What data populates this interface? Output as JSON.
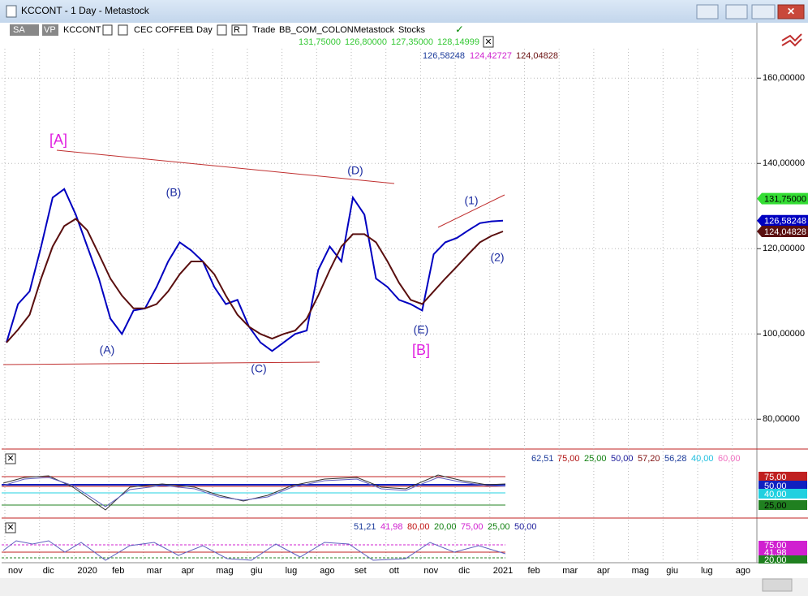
{
  "window": {
    "title": "KCCONT - 1 Day - Metastock"
  },
  "toolbar": {
    "badges": [
      "SA",
      "VP"
    ],
    "symbol": "KCCONT",
    "name": "CEC COFFEE",
    "period": "1 Day",
    "mode": "R",
    "items": [
      "Trade",
      "BB_COM_COLON",
      "Metastock",
      "Stocks"
    ]
  },
  "header": {
    "ohlc": [
      "131,75000",
      "126,80000",
      "127,35000",
      "128,14999"
    ],
    "indicators": [
      "126,58248",
      "124,42727",
      "124,04828"
    ]
  },
  "chart_data": {
    "type": "line",
    "categories": [
      "nov",
      null,
      null,
      "dic",
      null,
      null,
      "2020",
      null,
      null,
      "feb",
      null,
      null,
      "mar",
      null,
      null,
      "apr",
      null,
      null,
      "mag",
      null,
      null,
      "giu",
      null,
      null,
      "lug",
      null,
      null,
      "ago",
      null,
      null,
      "set",
      null,
      null,
      "ott",
      null,
      null,
      "nov",
      null,
      null,
      "dic",
      null,
      null,
      "2021",
      null,
      null,
      "feb",
      null,
      null,
      "mar",
      null,
      null,
      "apr",
      null,
      null,
      "mag",
      null,
      null,
      "giu",
      null,
      null,
      "lug",
      null,
      null,
      "ago",
      null,
      null
    ],
    "series": [
      {
        "name": "Close",
        "color": "#0000c0",
        "values": [
          98,
          107,
          110,
          120.5,
          132,
          134,
          128,
          120.5,
          113,
          103.6,
          100,
          105.5,
          106,
          111,
          117,
          121.5,
          119.6,
          117,
          111,
          107,
          108,
          101.7,
          98,
          96,
          98,
          100,
          100.8,
          115,
          120.5,
          117,
          132,
          128,
          113,
          111,
          108,
          107,
          105.5,
          118.7,
          121.5,
          122.5,
          124.3,
          126,
          126.4,
          126.58,
          null,
          null,
          null,
          null,
          null,
          null,
          null,
          null,
          null,
          null,
          null,
          null,
          null,
          null,
          null,
          null,
          null,
          null,
          null,
          null,
          null,
          null
        ]
      },
      {
        "name": "Average",
        "color": "#5a0f0f",
        "values": [
          98,
          101,
          104.5,
          113,
          120.5,
          125.3,
          127,
          124.3,
          118.7,
          113,
          109,
          106,
          106,
          107,
          110,
          114,
          117,
          117,
          114,
          109,
          104.5,
          101.7,
          100,
          98.9,
          100,
          100.8,
          103.6,
          109,
          115,
          120.5,
          123.4,
          123.4,
          121.5,
          117,
          112,
          108,
          107,
          110,
          113,
          115.8,
          118.7,
          121.5,
          123,
          124.04,
          null,
          null,
          null,
          null,
          null,
          null,
          null,
          null,
          null,
          null,
          null,
          null,
          null,
          null,
          null,
          null,
          null,
          null,
          null,
          null,
          null,
          null
        ]
      }
    ],
    "ylim": [
      73,
      173
    ],
    "yticks": [
      {
        "value": 80,
        "label": "80,00000"
      },
      {
        "value": 100,
        "label": "100,00000"
      },
      {
        "value": 120,
        "label": "120,00000"
      },
      {
        "value": 140,
        "label": "140,00000"
      },
      {
        "value": 160,
        "label": "160,00000"
      }
    ],
    "grid": true,
    "price_tags": [
      {
        "value": 131.75,
        "label": "131,75000",
        "color": "#33dd33"
      },
      {
        "value": 126.58248,
        "label": "126,58248",
        "color": "#0000c0"
      },
      {
        "value": 124.04828,
        "label": "124,04828",
        "color": "#5a0f0f"
      }
    ],
    "annotations": [
      "[A]",
      "(A)",
      "(B)",
      "(C)",
      "(D)",
      "(E)",
      "[B]",
      "(1)",
      "(2)"
    ]
  },
  "panel1": {
    "values": [
      "62,51",
      "75,00",
      "25,00",
      "50,00",
      "57,20",
      "56,28",
      "40,00",
      "60,00"
    ],
    "tags": [
      "75,00",
      "50,00",
      "40,00",
      "25,00"
    ]
  },
  "panel2": {
    "values": [
      "51,21",
      "41,98",
      "80,00",
      "20,00",
      "75,00",
      "25,00",
      "50,00"
    ],
    "tags": [
      "75,00",
      "41,98",
      "20,00"
    ]
  }
}
